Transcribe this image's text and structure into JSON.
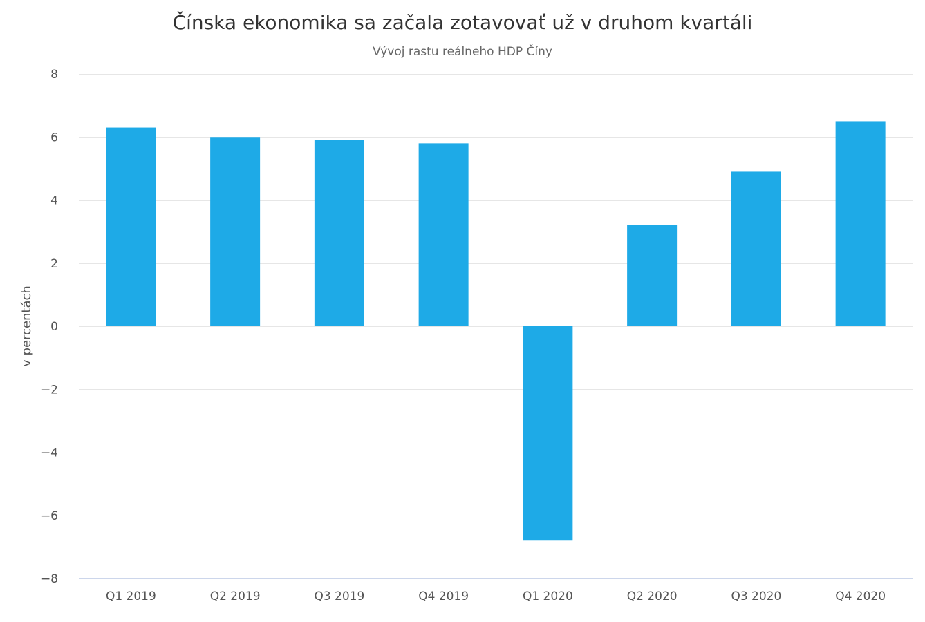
{
  "chart_data": {
    "type": "bar",
    "title": "Čínska ekonomika sa začala zotavovať už v druhom kvartáli",
    "subtitle": "Vývoj rastu reálneho HDP Číny",
    "xlabel": "",
    "ylabel": "v percentách",
    "categories": [
      "Q1 2019",
      "Q2 2019",
      "Q3 2019",
      "Q4 2019",
      "Q1 2020",
      "Q2 2020",
      "Q3 2020",
      "Q4 2020"
    ],
    "values": [
      6.3,
      6.0,
      5.9,
      5.8,
      -6.8,
      3.2,
      4.9,
      6.5
    ],
    "ylim": [
      -8,
      8
    ],
    "yticks": [
      8,
      6,
      4,
      2,
      0,
      -2,
      -4,
      -6,
      -8
    ],
    "ytick_labels": [
      "8",
      "6",
      "4",
      "2",
      "0",
      "−2",
      "−4",
      "−6",
      "−8"
    ],
    "bar_color": "#1eaae7",
    "grid": true,
    "legend": "none"
  }
}
